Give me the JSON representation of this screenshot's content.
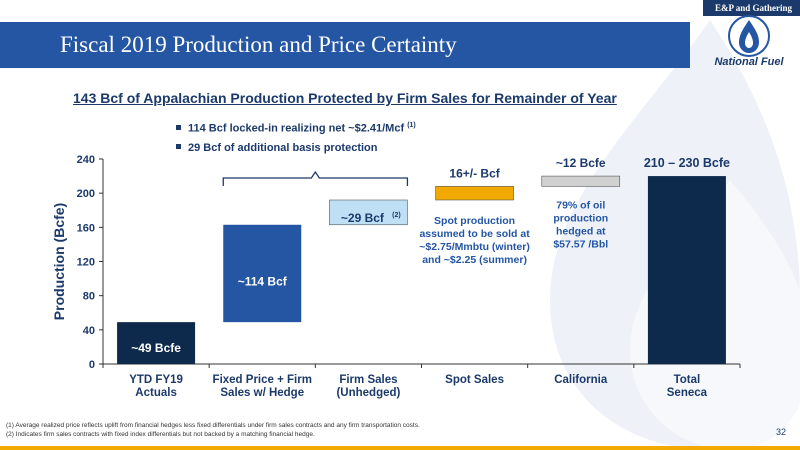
{
  "header": {
    "section_tag": "E&P and Gathering",
    "title": "Fiscal 2019 Production and Price Certainty",
    "logo_text": "National Fuel"
  },
  "subtitle": "143 Bcf of Appalachian Production Protected by Firm Sales for Remainder of Year",
  "bullets": [
    {
      "text": "114 Bcf locked-in realizing net ~$2.41/Mcf",
      "sup": "(1)"
    },
    {
      "text": "29 Bcf of additional basis protection",
      "sup": ""
    }
  ],
  "chart_data": {
    "type": "bar",
    "subtype": "waterfall",
    "ylabel": "Production (Bcfe)",
    "ylim": [
      0,
      240
    ],
    "yticks": [
      0,
      40,
      80,
      120,
      160,
      200,
      240
    ],
    "categories": [
      "YTD FY19 Actuals",
      "Fixed Price + Firm Sales w/ Hedge",
      "Firm Sales (Unhedged)",
      "Spot Sales",
      "California",
      "Total Seneca"
    ],
    "bars": [
      {
        "category": "YTD FY19 Actuals",
        "base": 0,
        "top": 49,
        "color": "#0d2a4d",
        "label": "~49 Bcfe"
      },
      {
        "category": "Fixed Price + Firm Sales w/ Hedge",
        "base": 49,
        "top": 163,
        "color": "#2456a4",
        "label": "~114 Bcf"
      },
      {
        "category": "Firm Sales (Unhedged)",
        "base": 163,
        "top": 192,
        "color": "#bfe0f4",
        "label": "~29 Bcf",
        "label_sup": "(2)"
      },
      {
        "category": "Spot Sales",
        "base": 192,
        "top": 208,
        "color": "#f2a900",
        "label": "16+/- Bcf"
      },
      {
        "category": "California",
        "base": 208,
        "top": 220,
        "color": "#d0d0d0",
        "label": "~12 Bcfe"
      },
      {
        "category": "Total Seneca",
        "base": 0,
        "top": 220,
        "color": "#0d2a4d",
        "label": "210 – 230 Bcfe"
      }
    ],
    "annotations": {
      "spot": "Spot production assumed to be sold at ~$2.75/Mmbtu (winter) and ~$2.25 (summer)",
      "california": "79% of oil production hedged at $57.57 /Bbl"
    },
    "colors": {
      "navy": "#0d2a4d",
      "blue": "#2456a4",
      "light_blue": "#bfe0f4",
      "gold": "#f2a900",
      "gray": "#d0d0d0"
    }
  },
  "footnotes": [
    "(1)   Average realized price reflects uplift from financial hedges less fixed differentials under firm sales contracts and any firm transportation costs.",
    "(2)   Indicates firm sales contracts with fixed index differentials but not backed by a matching financial hedge."
  ],
  "page_number": "32"
}
